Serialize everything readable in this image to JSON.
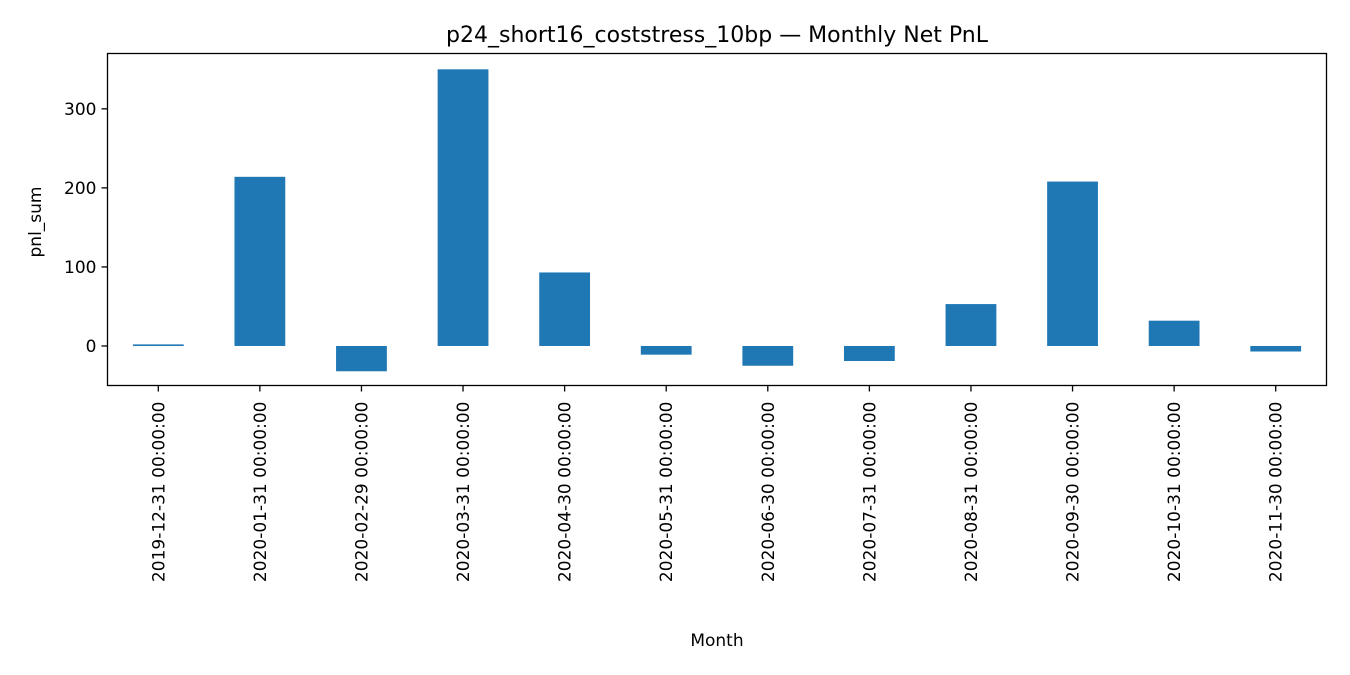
{
  "chart_data": {
    "type": "bar",
    "title": "p24_short16_coststress_10bp — Monthly Net PnL",
    "xlabel": "Month",
    "ylabel": "pnl_sum",
    "categories": [
      "2019-12-31 00:00:00",
      "2020-01-31 00:00:00",
      "2020-02-29 00:00:00",
      "2020-03-31 00:00:00",
      "2020-04-30 00:00:00",
      "2020-05-31 00:00:00",
      "2020-06-30 00:00:00",
      "2020-07-31 00:00:00",
      "2020-08-31 00:00:00",
      "2020-09-30 00:00:00",
      "2020-10-31 00:00:00",
      "2020-11-30 00:00:00"
    ],
    "values": [
      2,
      214,
      -32,
      350,
      93,
      -11,
      -25,
      -19,
      53,
      208,
      32,
      -7
    ],
    "ylim": [
      -50,
      370
    ],
    "yticks": [
      0,
      100,
      200,
      300
    ],
    "bar_color": "#1f77b4",
    "grid": false,
    "legend": false
  }
}
